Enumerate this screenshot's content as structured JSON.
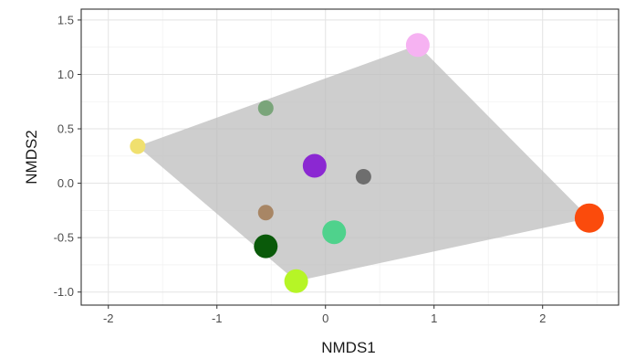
{
  "chart_data": {
    "type": "scatter",
    "title": "",
    "xlabel": "NMDS1",
    "ylabel": "NMDS2",
    "xlim": [
      -2.25,
      2.7
    ],
    "ylim": [
      -1.12,
      1.6
    ],
    "xticks": [
      -2,
      -1,
      0,
      1,
      2
    ],
    "yticks": [
      -1.0,
      -0.5,
      0.0,
      0.5,
      1.0,
      1.5
    ],
    "xtick_labels": [
      "-2",
      "-1",
      "0",
      "1",
      "2"
    ],
    "ytick_labels": [
      "-1.0",
      "-0.5",
      "0.0",
      "0.5",
      "1.0",
      "1.5"
    ],
    "grid": true,
    "background": "#ffffff",
    "hull": {
      "color": "#bebebe",
      "vertices": [
        {
          "x": -1.73,
          "y": 0.34
        },
        {
          "x": 0.85,
          "y": 1.27
        },
        {
          "x": 2.43,
          "y": -0.32
        },
        {
          "x": -0.27,
          "y": -0.9
        }
      ]
    },
    "points": [
      {
        "x": -1.73,
        "y": 0.34,
        "color": "#f0e06f",
        "size": "small"
      },
      {
        "x": 0.85,
        "y": 1.27,
        "color": "#f6b2f2",
        "size": "medium"
      },
      {
        "x": -0.55,
        "y": 0.69,
        "color": "#7aa57a",
        "size": "small"
      },
      {
        "x": -0.1,
        "y": 0.16,
        "color": "#8b28d2",
        "size": "medium"
      },
      {
        "x": 0.35,
        "y": 0.06,
        "color": "#6e6e6e",
        "size": "small"
      },
      {
        "x": -0.55,
        "y": -0.27,
        "color": "#a88665",
        "size": "small"
      },
      {
        "x": 0.08,
        "y": -0.45,
        "color": "#4fd28c",
        "size": "medium"
      },
      {
        "x": -0.55,
        "y": -0.58,
        "color": "#0a5a0a",
        "size": "medium"
      },
      {
        "x": -0.27,
        "y": -0.9,
        "color": "#b6f526",
        "size": "medium"
      },
      {
        "x": 2.43,
        "y": -0.32,
        "color": "#fb4b0c",
        "size": "large"
      }
    ]
  }
}
